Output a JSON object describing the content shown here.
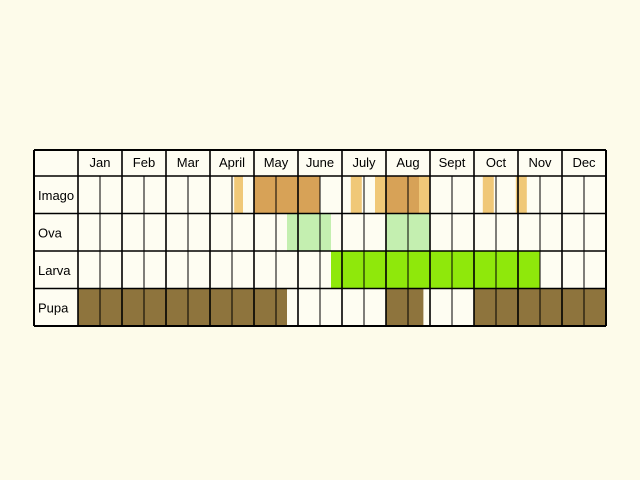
{
  "chart_data": {
    "type": "table",
    "months": [
      "Jan",
      "Feb",
      "Mar",
      "April",
      "May",
      "June",
      "July",
      "Aug",
      "Sept",
      "Oct",
      "Nov",
      "Dec"
    ],
    "colors": {
      "background": "#fdfbea",
      "imago_light": "#f0c878",
      "imago_dark": "#d7a257",
      "ova": "#c4efb0",
      "larva": "#8fe80b",
      "pupa": "#8e743d"
    },
    "rows": [
      {
        "label": "Imago",
        "periods": [
          {
            "start": 3.55,
            "end": 3.75,
            "color": "imago_light"
          },
          {
            "start": 4.0,
            "end": 5.5,
            "color": "imago_dark"
          },
          {
            "start": 6.2,
            "end": 6.45,
            "color": "imago_light"
          },
          {
            "start": 6.75,
            "end": 7.0,
            "color": "imago_light"
          },
          {
            "start": 7.0,
            "end": 7.75,
            "color": "imago_dark"
          },
          {
            "start": 7.75,
            "end": 8.0,
            "color": "imago_light"
          },
          {
            "start": 9.2,
            "end": 9.45,
            "color": "imago_light"
          },
          {
            "start": 9.95,
            "end": 10.2,
            "color": "imago_light"
          }
        ]
      },
      {
        "label": "Ova",
        "periods": [
          {
            "start": 4.75,
            "end": 5.75,
            "color": "ova"
          },
          {
            "start": 7.0,
            "end": 8.0,
            "color": "ova"
          }
        ]
      },
      {
        "label": "Larva",
        "periods": [
          {
            "start": 5.75,
            "end": 10.5,
            "color": "larva"
          }
        ]
      },
      {
        "label": "Pupa",
        "periods": [
          {
            "start": 0.0,
            "end": 4.75,
            "color": "pupa"
          },
          {
            "start": 7.0,
            "end": 7.85,
            "color": "pupa"
          },
          {
            "start": 9.0,
            "end": 12.0,
            "color": "pupa"
          }
        ]
      }
    ]
  }
}
